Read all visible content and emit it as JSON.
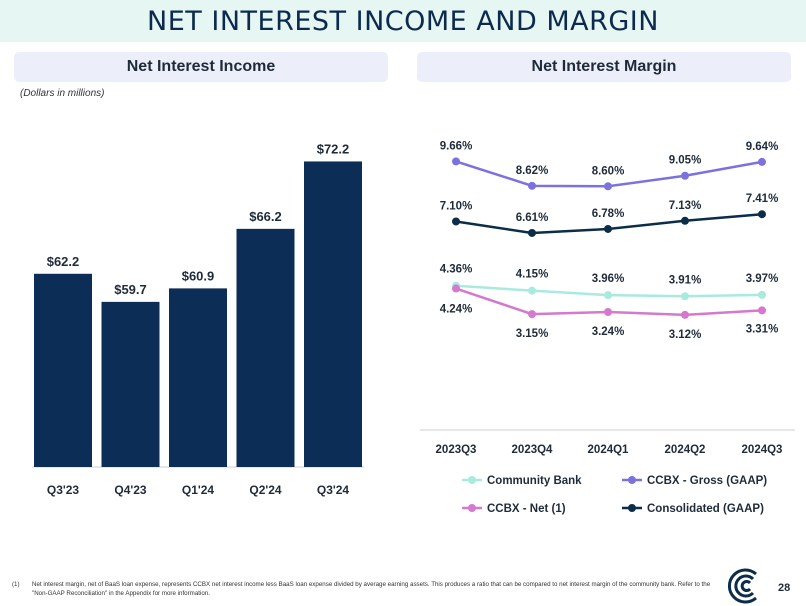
{
  "page": {
    "title": "NET INTEREST INCOME AND MARGIN",
    "left_header": "Net Interest Income",
    "right_header": "Net Interest Margin",
    "units_note": "(Dollars in millions)",
    "footnote_mark": "(1)",
    "footnote": "Net interest margin, net of BaaS loan expense, represents CCBX net interest income less BaaS loan expense divided by average earning assets.  This produces a ratio that can be compared to net interest margin of the community bank.  Refer to the \"Non-GAAP Reconciliation\" in the Appendix for more information.",
    "page_number": "28"
  },
  "chart_data": [
    {
      "type": "bar",
      "title": "Net Interest Income",
      "categories": [
        "Q3'23",
        "Q4'23",
        "Q1'24",
        "Q2'24",
        "Q3'24"
      ],
      "values": [
        62.2,
        59.7,
        60.9,
        66.2,
        72.2
      ],
      "labels": [
        "$62.2",
        "$59.7",
        "$60.9",
        "$66.2",
        "$72.2"
      ],
      "ylim": [
        45,
        75
      ],
      "color": "#0c2d55"
    },
    {
      "type": "line",
      "title": "Net Interest Margin",
      "categories": [
        "2023Q3",
        "2023Q4",
        "2024Q1",
        "2024Q2",
        "2024Q3"
      ],
      "ylim": [
        0,
        11
      ],
      "series": [
        {
          "name": "Community Bank",
          "color": "#a9eadf",
          "values": [
            4.36,
            4.15,
            3.96,
            3.91,
            3.97
          ],
          "labels": [
            "4.36%",
            "4.15%",
            "3.96%",
            "3.91%",
            "3.97%"
          ]
        },
        {
          "name": "CCBX - Gross (GAAP)",
          "color": "#7b72e0",
          "values": [
            9.66,
            8.62,
            8.6,
            9.05,
            9.64
          ],
          "labels": [
            "9.66%",
            "8.62%",
            "8.60%",
            "9.05%",
            "9.64%"
          ]
        },
        {
          "name": "CCBX - Net (1)",
          "color": "#d479cf",
          "values": [
            4.24,
            3.15,
            3.24,
            3.12,
            3.31
          ],
          "labels": [
            "4.24%",
            "3.15%",
            "3.24%",
            "3.12%",
            "3.31%"
          ]
        },
        {
          "name": "Consolidated (GAAP)",
          "color": "#0c2d4a",
          "values": [
            7.1,
            6.61,
            6.78,
            7.13,
            7.41
          ],
          "labels": [
            "7.10%",
            "6.61%",
            "6.78%",
            "7.13%",
            "7.41%"
          ]
        }
      ]
    }
  ]
}
